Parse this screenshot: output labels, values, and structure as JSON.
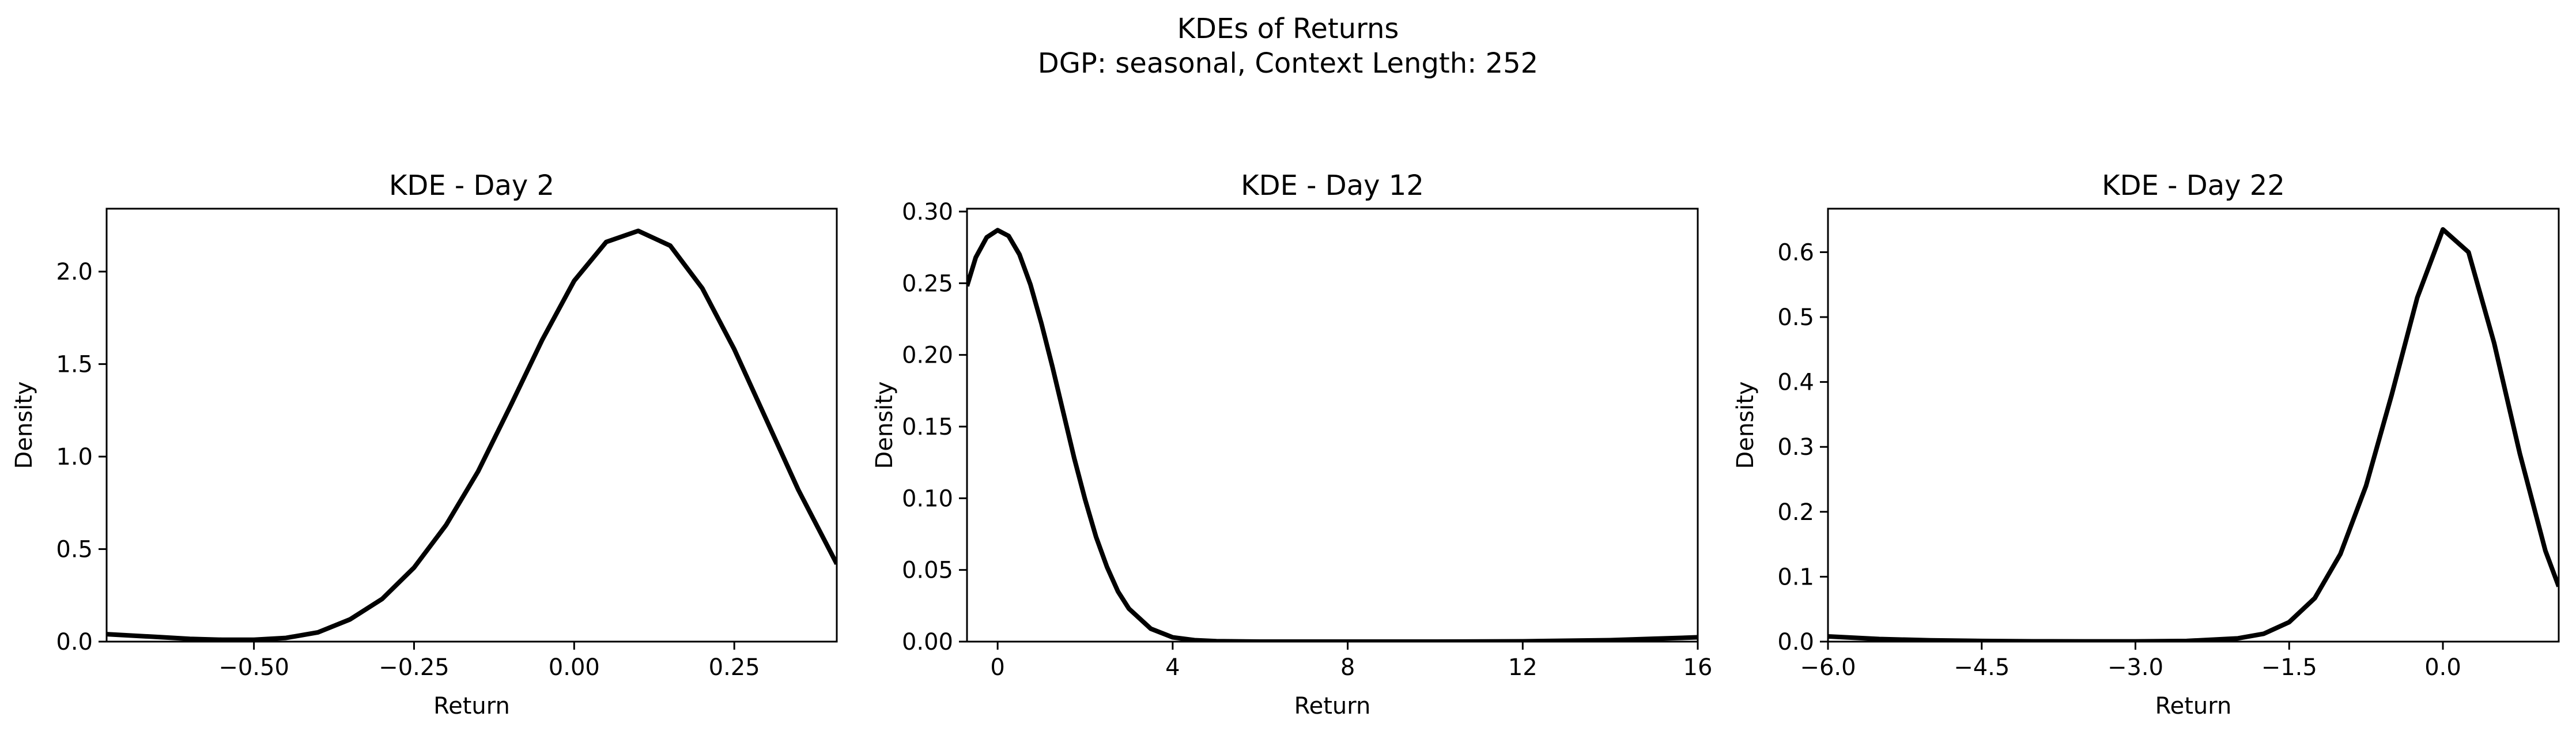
{
  "figure": {
    "suptitle_line1": "KDEs of Returns",
    "suptitle_line2": "DGP: seasonal, Context Length: 252"
  },
  "colors": {
    "line": "#000000",
    "background": "#ffffff",
    "axes": "#000000"
  },
  "chart_data": [
    {
      "type": "line",
      "title": "KDE - Day 2",
      "xlabel": "Return",
      "ylabel": "Density",
      "xlim": [
        -0.73,
        0.41
      ],
      "ylim": [
        0,
        2.34
      ],
      "xticks": [
        -0.5,
        -0.25,
        0.0,
        0.25
      ],
      "xtick_labels": [
        "−0.50",
        "−0.25",
        "0.00",
        "0.25"
      ],
      "yticks": [
        0,
        0.5,
        1.0,
        1.5,
        2.0
      ],
      "ytick_labels": [
        "0.0",
        "0.5",
        "1.0",
        "1.5",
        "2.0"
      ],
      "grid": false,
      "series": [
        {
          "x": [
            -0.73,
            -0.65,
            -0.6,
            -0.55,
            -0.5,
            -0.45,
            -0.4,
            -0.35,
            -0.3,
            -0.25,
            -0.2,
            -0.15,
            -0.1,
            -0.05,
            0.0,
            0.05,
            0.1,
            0.15,
            0.2,
            0.25,
            0.3,
            0.35,
            0.41
          ],
          "y": [
            0.04,
            0.025,
            0.015,
            0.01,
            0.01,
            0.02,
            0.05,
            0.12,
            0.23,
            0.4,
            0.63,
            0.92,
            1.27,
            1.63,
            1.95,
            2.16,
            2.22,
            2.14,
            1.91,
            1.58,
            1.2,
            0.82,
            0.42
          ]
        }
      ]
    },
    {
      "type": "line",
      "title": "KDE - Day 12",
      "xlabel": "Return",
      "ylabel": "Density",
      "xlim": [
        -0.7,
        16.0
      ],
      "ylim": [
        0,
        0.302
      ],
      "xticks": [
        0,
        4,
        8,
        12,
        16
      ],
      "xtick_labels": [
        "0",
        "4",
        "8",
        "12",
        "16"
      ],
      "yticks": [
        0,
        0.05,
        0.1,
        0.15,
        0.2,
        0.25,
        0.3
      ],
      "ytick_labels": [
        "0.00",
        "0.05",
        "0.10",
        "0.15",
        "0.20",
        "0.25",
        "0.30"
      ],
      "grid": false,
      "series": [
        {
          "x": [
            -0.7,
            -0.5,
            -0.25,
            0.0,
            0.25,
            0.5,
            0.75,
            1.0,
            1.25,
            1.5,
            1.75,
            2.0,
            2.25,
            2.5,
            2.75,
            3.0,
            3.5,
            4.0,
            4.5,
            5.0,
            6.0,
            8.0,
            10.0,
            12.0,
            14.0,
            15.0,
            16.0
          ],
          "y": [
            0.248,
            0.268,
            0.282,
            0.287,
            0.283,
            0.27,
            0.249,
            0.222,
            0.192,
            0.16,
            0.128,
            0.099,
            0.073,
            0.052,
            0.035,
            0.023,
            0.009,
            0.003,
            0.001,
            0.0003,
            0.0,
            0.0,
            0.0,
            0.0002,
            0.001,
            0.002,
            0.003
          ]
        }
      ]
    },
    {
      "type": "line",
      "title": "KDE - Day 22",
      "xlabel": "Return",
      "ylabel": "Density",
      "xlim": [
        -6.0,
        1.13
      ],
      "ylim": [
        0,
        0.667
      ],
      "xticks": [
        -6.0,
        -4.5,
        -3.0,
        -1.5,
        0.0
      ],
      "xtick_labels": [
        "−6.0",
        "−4.5",
        "−3.0",
        "−1.5",
        "0.0"
      ],
      "yticks": [
        0,
        0.1,
        0.2,
        0.3,
        0.4,
        0.5,
        0.6
      ],
      "ytick_labels": [
        "0.0",
        "0.1",
        "0.2",
        "0.3",
        "0.4",
        "0.5",
        "0.6"
      ],
      "grid": false,
      "series": [
        {
          "x": [
            -6.0,
            -5.5,
            -5.0,
            -4.5,
            -4.0,
            -3.5,
            -3.0,
            -2.5,
            -2.0,
            -1.75,
            -1.5,
            -1.25,
            -1.0,
            -0.75,
            -0.5,
            -0.25,
            0.0,
            0.25,
            0.5,
            0.75,
            1.0,
            1.13
          ],
          "y": [
            0.008,
            0.004,
            0.002,
            0.001,
            0.0005,
            0.0003,
            0.0003,
            0.001,
            0.005,
            0.012,
            0.03,
            0.067,
            0.135,
            0.24,
            0.38,
            0.53,
            0.635,
            0.6,
            0.46,
            0.29,
            0.14,
            0.085
          ]
        }
      ]
    }
  ]
}
